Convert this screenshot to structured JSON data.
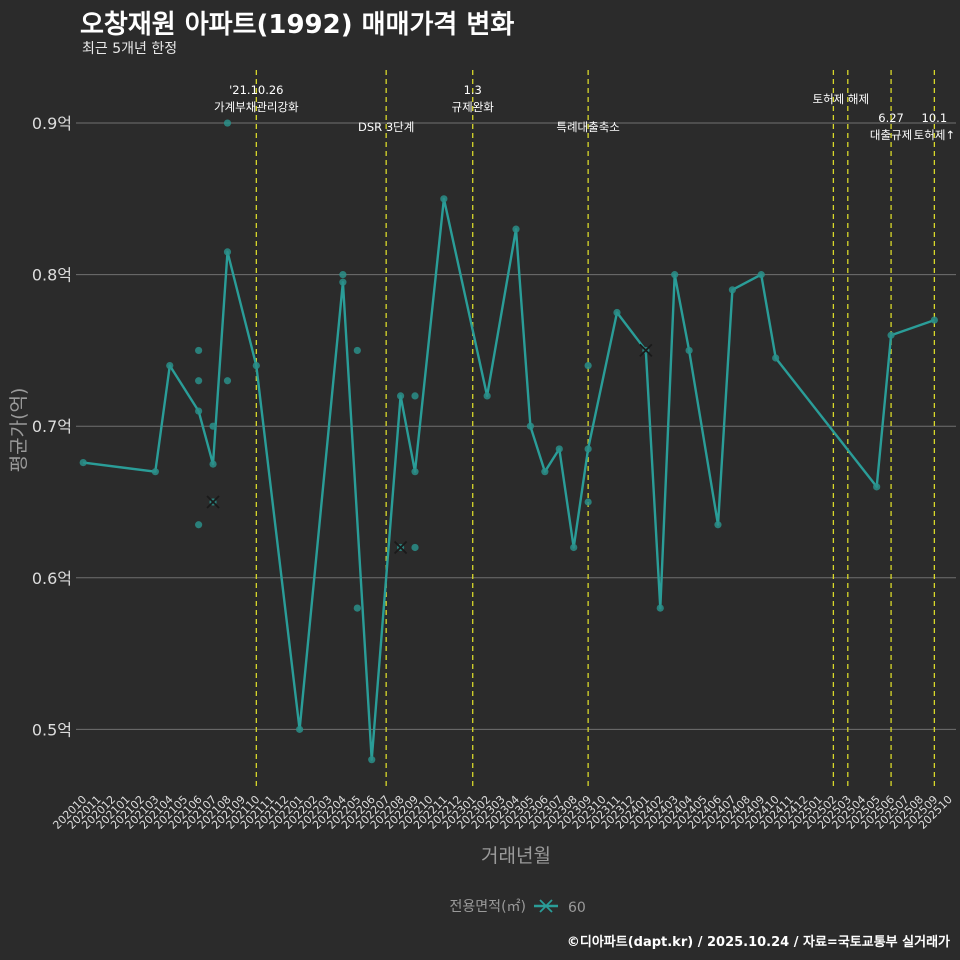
{
  "header": {
    "title": "오창재원 아파트(1992) 매매가격 변화",
    "subtitle": "최근 5개년 한정"
  },
  "footer": {
    "caption": "©디아파트(dapt.kr) / 2025.10.24 / 자료=국토교통부 실거래가"
  },
  "colors": {
    "background": "#2b2b2b",
    "grid": "#707070",
    "line": "#2a9d98",
    "point": "#2a8f8a",
    "event": "#d8d82a",
    "text": "#ffffff",
    "axis_text": "#dddddd",
    "axis_title": "#9a9a9a"
  },
  "chart_data": {
    "type": "line",
    "xlabel": "거래년월",
    "ylabel": "평균가(억)",
    "ylim": [
      0.46,
      0.935
    ],
    "xlim": [
      -0.5,
      60.5
    ],
    "y_ticks": [
      {
        "value": 0.5,
        "label": "0.5억"
      },
      {
        "value": 0.6,
        "label": "0.6억"
      },
      {
        "value": 0.7,
        "label": "0.7억"
      },
      {
        "value": 0.8,
        "label": "0.8억"
      },
      {
        "value": 0.9,
        "label": "0.9억"
      }
    ],
    "categories": [
      "202010",
      "202011",
      "202012",
      "202101",
      "202102",
      "202103",
      "202104",
      "202105",
      "202106",
      "202107",
      "202108",
      "202109",
      "202110",
      "202111",
      "202112",
      "202201",
      "202202",
      "202203",
      "202204",
      "202205",
      "202206",
      "202207",
      "202208",
      "202209",
      "202210",
      "202211",
      "202212",
      "202301",
      "202302",
      "202303",
      "202304",
      "202305",
      "202306",
      "202307",
      "202308",
      "202309",
      "202310",
      "202311",
      "202312",
      "202401",
      "202402",
      "202403",
      "202404",
      "202405",
      "202406",
      "202407",
      "202408",
      "202409",
      "202410",
      "202411",
      "202412",
      "202501",
      "202502",
      "202503",
      "202504",
      "202505",
      "202506",
      "202507",
      "202508",
      "202509",
      "202510"
    ],
    "legend": {
      "title": "전용면적(㎡)",
      "label": "60",
      "position": "bottom"
    },
    "series": [
      {
        "name": "60",
        "line": [
          [
            0,
            0.676
          ],
          [
            5,
            0.67
          ],
          [
            6,
            0.74
          ],
          [
            8,
            0.71
          ],
          [
            9,
            0.675
          ],
          [
            10,
            0.815
          ],
          [
            12,
            0.74
          ],
          [
            15,
            0.5
          ],
          [
            18,
            0.795
          ],
          [
            20,
            0.48
          ],
          [
            22,
            0.72
          ],
          [
            23,
            0.67
          ],
          [
            25,
            0.85
          ],
          [
            28,
            0.72
          ],
          [
            30,
            0.83
          ],
          [
            31,
            0.7
          ],
          [
            32,
            0.67
          ],
          [
            33,
            0.685
          ],
          [
            34,
            0.62
          ],
          [
            35,
            0.685
          ],
          [
            37,
            0.775
          ],
          [
            39,
            0.75
          ],
          [
            40,
            0.58
          ],
          [
            41,
            0.8
          ],
          [
            42,
            0.75
          ],
          [
            44,
            0.635
          ],
          [
            45,
            0.79
          ],
          [
            47,
            0.8
          ],
          [
            48,
            0.745
          ],
          [
            55,
            0.66
          ],
          [
            56,
            0.76
          ],
          [
            59,
            0.77
          ]
        ],
        "points": [
          [
            0,
            0.676
          ],
          [
            5,
            0.67
          ],
          [
            6,
            0.74
          ],
          [
            8,
            0.75
          ],
          [
            8,
            0.73
          ],
          [
            8,
            0.71
          ],
          [
            8,
            0.635
          ],
          [
            9,
            0.675
          ],
          [
            9,
            0.7
          ],
          [
            9,
            0.65
          ],
          [
            10,
            0.9
          ],
          [
            10,
            0.815
          ],
          [
            10,
            0.73
          ],
          [
            12,
            0.74
          ],
          [
            15,
            0.5
          ],
          [
            18,
            0.8
          ],
          [
            18,
            0.795
          ],
          [
            19,
            0.75
          ],
          [
            19,
            0.58
          ],
          [
            20,
            0.48
          ],
          [
            22,
            0.72
          ],
          [
            22,
            0.62
          ],
          [
            23,
            0.72
          ],
          [
            23,
            0.67
          ],
          [
            23,
            0.62
          ],
          [
            25,
            0.85
          ],
          [
            28,
            0.72
          ],
          [
            30,
            0.83
          ],
          [
            31,
            0.7
          ],
          [
            32,
            0.67
          ],
          [
            33,
            0.685
          ],
          [
            34,
            0.62
          ],
          [
            35,
            0.74
          ],
          [
            35,
            0.685
          ],
          [
            35,
            0.65
          ],
          [
            37,
            0.775
          ],
          [
            39,
            0.75
          ],
          [
            40,
            0.58
          ],
          [
            41,
            0.8
          ],
          [
            42,
            0.75
          ],
          [
            44,
            0.635
          ],
          [
            45,
            0.79
          ],
          [
            47,
            0.8
          ],
          [
            48,
            0.745
          ],
          [
            55,
            0.66
          ],
          [
            56,
            0.76
          ],
          [
            59,
            0.77
          ]
        ],
        "cross_markers": [
          [
            9,
            0.65
          ],
          [
            22,
            0.62
          ],
          [
            39,
            0.75
          ]
        ]
      }
    ],
    "events": [
      {
        "x": 12,
        "lines": [
          "'21.10.26",
          "가계부채관리강화"
        ],
        "level": "high"
      },
      {
        "x": 21,
        "lines": [
          "DSR 3단계"
        ],
        "level": "low"
      },
      {
        "x": 27,
        "lines": [
          "1.3",
          "규제완화"
        ],
        "level": "high"
      },
      {
        "x": 35,
        "lines": [
          "특례대출축소"
        ],
        "level": "low"
      },
      {
        "x": 52,
        "lines": [],
        "level": "none"
      },
      {
        "x": 53,
        "lines": [
          "토허제 해제"
        ],
        "level": "mid"
      },
      {
        "x": 56,
        "lines": [
          "6.27",
          "대출규제"
        ],
        "level": "right"
      },
      {
        "x": 59,
        "lines": [
          "10.1",
          "토허제↑"
        ],
        "level": "right"
      }
    ]
  }
}
